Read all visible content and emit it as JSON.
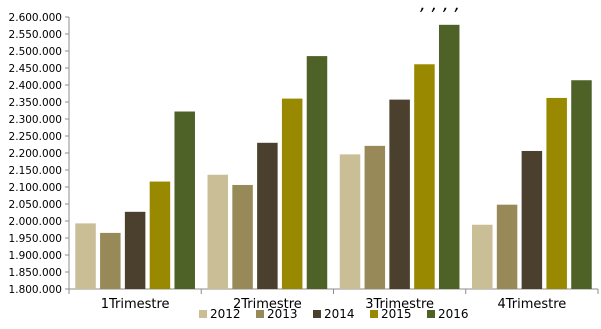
{
  "chart_data": {
    "type": "bar",
    "title": "",
    "xlabel": "",
    "ylabel": "",
    "categories": [
      "1Trimestre",
      "2Trimestre",
      "3Trimestre",
      "4Trimestre"
    ],
    "series": [
      {
        "name": "2012",
        "color": "#C9BE96",
        "values": [
          1993000,
          2136000,
          2196000,
          1989000
        ]
      },
      {
        "name": "2013",
        "color": "#988A58",
        "values": [
          1965000,
          2106000,
          2221000,
          2048000
        ]
      },
      {
        "name": "2014",
        "color": "#4B3F2D",
        "values": [
          2027000,
          2230000,
          2357000,
          2206000
        ]
      },
      {
        "name": "2015",
        "color": "#998900",
        "values": [
          2116000,
          2360000,
          2461000,
          2362000
        ]
      },
      {
        "name": "2016",
        "color": "#4E6126",
        "values": [
          2322000,
          2485000,
          2577000,
          2414000
        ]
      }
    ],
    "ylim": [
      1800000,
      2600000
    ],
    "yticks": [
      1800000,
      1850000,
      1900000,
      1950000,
      2000000,
      2050000,
      2100000,
      2150000,
      2200000,
      2250000,
      2300000,
      2350000,
      2400000,
      2450000,
      2500000,
      2550000,
      2600000
    ],
    "ytick_labels": [
      "1.800.000",
      "1.850.000",
      "1.900.000",
      "1.950.000",
      "2.000.000",
      "2.050.000",
      "2.100.000",
      "2.150.000",
      "2.200.000",
      "2.250.000",
      "2.300.000",
      "2.350.000",
      "2.400.000",
      "2.450.000",
      "2.500.000",
      "2.550.000",
      "2.600.000"
    ],
    "legend_position": "bottom",
    "grid": false
  },
  "header_fragment": ", , , ,"
}
